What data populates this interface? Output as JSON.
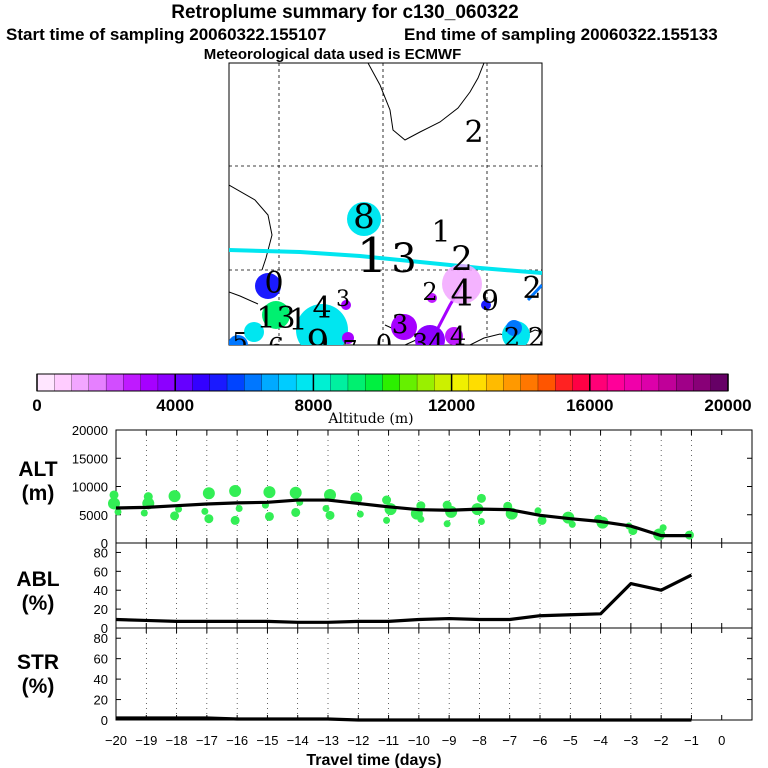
{
  "header": {
    "title": "Retroplume summary for c130_060322",
    "start": "Start time of sampling 20060322.155107",
    "end": "End time of sampling 20060322.155133",
    "met": "Meteorological data used is ECMWF"
  },
  "colorbar": {
    "label": "Altitude (m)",
    "ticks": [
      "0",
      "4000",
      "8000",
      "12000",
      "16000",
      "20000"
    ],
    "colors": [
      "#ffe6ff",
      "#ffccff",
      "#f2a6ff",
      "#e680ff",
      "#d24dff",
      "#bf1aff",
      "#a600ff",
      "#8c00ff",
      "#6600ff",
      "#3300ff",
      "#1a1aff",
      "#0044ff",
      "#0077ff",
      "#00aaff",
      "#00ccff",
      "#00e6f0",
      "#00f0d2",
      "#00f0a0",
      "#00f070",
      "#00f040",
      "#2cf000",
      "#66f000",
      "#99f000",
      "#ccf000",
      "#f0f000",
      "#ffdd00",
      "#ffbb00",
      "#ff9900",
      "#ff7700",
      "#ff5500",
      "#ff2222",
      "#ff0044",
      "#ff0077",
      "#ff0099",
      "#f000aa",
      "#dd00aa",
      "#c00099",
      "#a00088",
      "#880077",
      "#660066"
    ]
  },
  "map": {
    "labels": [
      "2",
      "8",
      "1",
      "3",
      "1",
      "2",
      "4",
      "9",
      "2",
      "0",
      "1",
      "3",
      "1",
      "4",
      "3",
      "3",
      "2",
      "4",
      "5",
      "6",
      "9",
      "7",
      "0",
      "3",
      "4",
      "2",
      "2"
    ]
  },
  "chart_data": [
    {
      "type": "line",
      "name": "ALT",
      "ylabel": "ALT (m)",
      "ylim": [
        0,
        20000
      ],
      "yticks": [
        0,
        5000,
        10000,
        15000,
        20000
      ],
      "x": [
        -20,
        -19,
        -18,
        -17,
        -16,
        -15,
        -14,
        -13,
        -12,
        -11,
        -10,
        -9,
        -8,
        -7,
        -6,
        -5,
        -4,
        -3,
        -2,
        -1
      ],
      "values": [
        6200,
        6300,
        6600,
        6900,
        7100,
        7200,
        7600,
        7600,
        7000,
        6400,
        5900,
        5800,
        6000,
        5900,
        4900,
        4300,
        3800,
        3000,
        1300,
        1300
      ],
      "scatter_points": [
        [
          -20,
          7000
        ],
        [
          -20,
          5500
        ],
        [
          -20,
          8500
        ],
        [
          -19,
          7000
        ],
        [
          -19,
          5300
        ],
        [
          -19,
          8200
        ],
        [
          -18,
          8300
        ],
        [
          -18,
          6000
        ],
        [
          -18,
          4800
        ],
        [
          -17,
          8800
        ],
        [
          -17,
          5600
        ],
        [
          -17,
          4300
        ],
        [
          -16,
          9200
        ],
        [
          -16,
          6100
        ],
        [
          -16,
          4000
        ],
        [
          -15,
          9000
        ],
        [
          -15,
          6700
        ],
        [
          -15,
          4700
        ],
        [
          -14,
          8900
        ],
        [
          -14,
          7200
        ],
        [
          -14,
          5400
        ],
        [
          -13,
          8500
        ],
        [
          -13,
          6100
        ],
        [
          -13,
          4900
        ],
        [
          -12,
          7900
        ],
        [
          -12,
          5100
        ],
        [
          -11,
          7600
        ],
        [
          -11,
          6000
        ],
        [
          -11,
          4000
        ],
        [
          -10,
          6600
        ],
        [
          -10,
          5200
        ],
        [
          -10,
          4200
        ],
        [
          -9,
          6700
        ],
        [
          -9,
          5500
        ],
        [
          -9,
          3400
        ],
        [
          -8,
          7900
        ],
        [
          -8,
          6000
        ],
        [
          -8,
          3800
        ],
        [
          -7,
          6500
        ],
        [
          -7,
          5200
        ],
        [
          -6,
          5700
        ],
        [
          -6,
          4000
        ],
        [
          -5,
          4500
        ],
        [
          -5,
          3300
        ],
        [
          -4,
          4200
        ],
        [
          -4,
          3600
        ],
        [
          -3,
          3000
        ],
        [
          -3,
          2200
        ],
        [
          -2,
          1500
        ],
        [
          -2,
          2700
        ],
        [
          -1,
          1400
        ]
      ],
      "xlabel": ""
    },
    {
      "type": "line",
      "name": "ABL",
      "ylabel": "ABL (%)",
      "ylim": [
        0,
        90
      ],
      "yticks": [
        0,
        20,
        40,
        60,
        80
      ],
      "x": [
        -20,
        -19,
        -18,
        -17,
        -16,
        -15,
        -14,
        -13,
        -12,
        -11,
        -10,
        -9,
        -8,
        -7,
        -6,
        -5,
        -4,
        -3,
        -2,
        -1
      ],
      "values": [
        9,
        8,
        7,
        7,
        7,
        7,
        6,
        6,
        7,
        7,
        9,
        10,
        9,
        9,
        13,
        14,
        15,
        47,
        40,
        56
      ],
      "xlabel": ""
    },
    {
      "type": "line",
      "name": "STR",
      "ylabel": "STR (%)",
      "ylim": [
        0,
        90
      ],
      "yticks": [
        0,
        20,
        40,
        60,
        80
      ],
      "x": [
        -20,
        -19,
        -18,
        -17,
        -16,
        -15,
        -14,
        -13,
        -12,
        -11,
        -10,
        -9,
        -8,
        -7,
        -6,
        -5,
        -4,
        -3,
        -2,
        -1
      ],
      "values": [
        2,
        2,
        2,
        2,
        1,
        1,
        1,
        1,
        0,
        0,
        0,
        0,
        0,
        0,
        0,
        0,
        0,
        0,
        0,
        0
      ],
      "xlabel": "Travel time (days)",
      "xticks": [
        "−20",
        "−19",
        "−18",
        "−17",
        "−16",
        "−15",
        "−14",
        "−13",
        "−12",
        "−11",
        "−10",
        "−9",
        "−8",
        "−7",
        "−6",
        "−5",
        "−4",
        "−3",
        "−2",
        "−1",
        "0"
      ]
    }
  ],
  "panel_labels": {
    "alt": [
      "ALT",
      "(m)"
    ],
    "abl": [
      "ABL",
      "(%)"
    ],
    "str": [
      "STR",
      "(%)"
    ]
  }
}
